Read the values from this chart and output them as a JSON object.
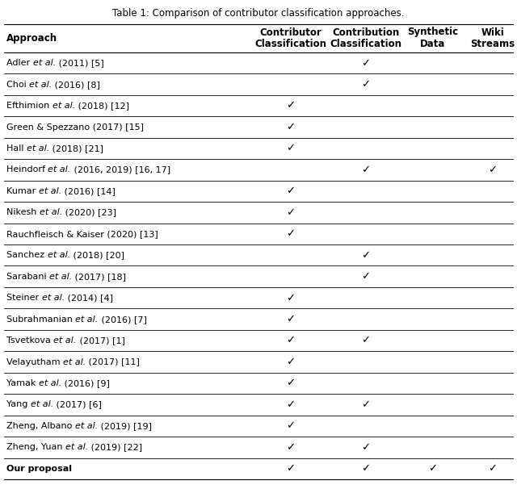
{
  "title": "Table 1: Comparison of contributor classification approaches.",
  "col_headers": [
    "Approach",
    "Contributor\nClassification",
    "Contribution\nClassification",
    "Synthetic\nData",
    "Wiki\nStreams"
  ],
  "rows": [
    {
      "parts": [
        [
          "Adler ",
          "normal"
        ],
        [
          "et al.",
          "italic"
        ],
        [
          " (2011) [5]",
          "normal"
        ]
      ],
      "checks": [
        0,
        1,
        0,
        0
      ],
      "bold": false
    },
    {
      "parts": [
        [
          "Choi ",
          "normal"
        ],
        [
          "et al.",
          "italic"
        ],
        [
          " (2016) [8]",
          "normal"
        ]
      ],
      "checks": [
        0,
        1,
        0,
        0
      ],
      "bold": false
    },
    {
      "parts": [
        [
          "Efthimion ",
          "normal"
        ],
        [
          "et al.",
          "italic"
        ],
        [
          " (2018) [12]",
          "normal"
        ]
      ],
      "checks": [
        1,
        0,
        0,
        0
      ],
      "bold": false
    },
    {
      "parts": [
        [
          "Green & Spezzano (2017) [15]",
          "normal"
        ]
      ],
      "checks": [
        1,
        0,
        0,
        0
      ],
      "bold": false
    },
    {
      "parts": [
        [
          "Hall ",
          "normal"
        ],
        [
          "et al.",
          "italic"
        ],
        [
          " (2018) [21]",
          "normal"
        ]
      ],
      "checks": [
        1,
        0,
        0,
        0
      ],
      "bold": false
    },
    {
      "parts": [
        [
          "Heindorf ",
          "normal"
        ],
        [
          "et al.",
          "italic"
        ],
        [
          " (2016, 2019) [16, 17]",
          "normal"
        ]
      ],
      "checks": [
        0,
        1,
        0,
        1
      ],
      "bold": false
    },
    {
      "parts": [
        [
          "Kumar ",
          "normal"
        ],
        [
          "et al.",
          "italic"
        ],
        [
          " (2016) [14]",
          "normal"
        ]
      ],
      "checks": [
        1,
        0,
        0,
        0
      ],
      "bold": false
    },
    {
      "parts": [
        [
          "Nikesh ",
          "normal"
        ],
        [
          "et al.",
          "italic"
        ],
        [
          " (2020) [23]",
          "normal"
        ]
      ],
      "checks": [
        1,
        0,
        0,
        0
      ],
      "bold": false
    },
    {
      "parts": [
        [
          "Rauchfleisch & Kaiser (2020) [13]",
          "normal"
        ]
      ],
      "checks": [
        1,
        0,
        0,
        0
      ],
      "bold": false
    },
    {
      "parts": [
        [
          "Sanchez ",
          "normal"
        ],
        [
          "et al.",
          "italic"
        ],
        [
          " (2018) [20]",
          "normal"
        ]
      ],
      "checks": [
        0,
        1,
        0,
        0
      ],
      "bold": false
    },
    {
      "parts": [
        [
          "Sarabani ",
          "normal"
        ],
        [
          "et al.",
          "italic"
        ],
        [
          " (2017) [18]",
          "normal"
        ]
      ],
      "checks": [
        0,
        1,
        0,
        0
      ],
      "bold": false
    },
    {
      "parts": [
        [
          "Steiner ",
          "normal"
        ],
        [
          "et al.",
          "italic"
        ],
        [
          " (2014) [4]",
          "normal"
        ]
      ],
      "checks": [
        1,
        0,
        0,
        0
      ],
      "bold": false
    },
    {
      "parts": [
        [
          "Subrahmanian ",
          "normal"
        ],
        [
          "et al.",
          "italic"
        ],
        [
          " (2016) [7]",
          "normal"
        ]
      ],
      "checks": [
        1,
        0,
        0,
        0
      ],
      "bold": false
    },
    {
      "parts": [
        [
          "Tsvetkova ",
          "normal"
        ],
        [
          "et al.",
          "italic"
        ],
        [
          " (2017) [1]",
          "normal"
        ]
      ],
      "checks": [
        1,
        1,
        0,
        0
      ],
      "bold": false
    },
    {
      "parts": [
        [
          "Velayutham ",
          "normal"
        ],
        [
          "et al.",
          "italic"
        ],
        [
          " (2017) [11]",
          "normal"
        ]
      ],
      "checks": [
        1,
        0,
        0,
        0
      ],
      "bold": false
    },
    {
      "parts": [
        [
          "Yamak ",
          "normal"
        ],
        [
          "et al.",
          "italic"
        ],
        [
          " (2016) [9]",
          "normal"
        ]
      ],
      "checks": [
        1,
        0,
        0,
        0
      ],
      "bold": false
    },
    {
      "parts": [
        [
          "Yang ",
          "normal"
        ],
        [
          "et al.",
          "italic"
        ],
        [
          " (2017) [6]",
          "normal"
        ]
      ],
      "checks": [
        1,
        1,
        0,
        0
      ],
      "bold": false
    },
    {
      "parts": [
        [
          "Zheng, Albano ",
          "normal"
        ],
        [
          "et al.",
          "italic"
        ],
        [
          " (2019) [19]",
          "normal"
        ]
      ],
      "checks": [
        1,
        0,
        0,
        0
      ],
      "bold": false
    },
    {
      "parts": [
        [
          "Zheng, Yuan ",
          "normal"
        ],
        [
          "et al.",
          "italic"
        ],
        [
          " (2019) [22]",
          "normal"
        ]
      ],
      "checks": [
        1,
        1,
        0,
        0
      ],
      "bold": false
    },
    {
      "parts": [
        [
          "Our proposal",
          "normal"
        ]
      ],
      "checks": [
        1,
        1,
        1,
        1
      ],
      "bold": true
    }
  ],
  "check_symbol": "✓",
  "background_color": "#ffffff",
  "fontsize": 8.0,
  "title_fontsize": 8.5,
  "header_fontsize": 8.5
}
